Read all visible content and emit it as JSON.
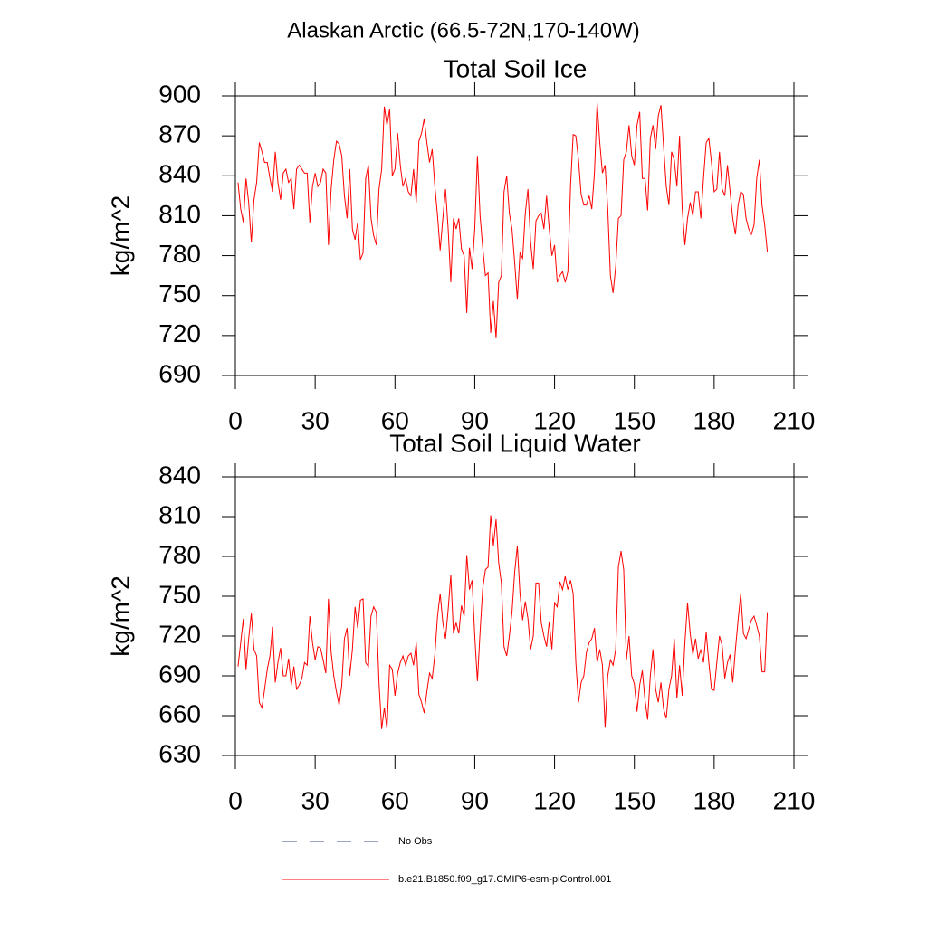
{
  "title": "Alaskan Arctic (66.5-72N,170-140W)",
  "legend": [
    {
      "name": "No Obs",
      "color": "#3a4a8a",
      "dash": true
    },
    {
      "name": "b.e21.B1850.f09_g17.CMIP6-esm-piControl.001",
      "color": "#ff0000",
      "dash": false
    }
  ],
  "chart_data": [
    {
      "type": "line",
      "title": "Total Soil Ice",
      "ylabel": "kg/m^2",
      "x": [
        1,
        2,
        3,
        4,
        5,
        6,
        7,
        8,
        9,
        10,
        11,
        12,
        13,
        14,
        15,
        16,
        17,
        18,
        19,
        20,
        21,
        22,
        23,
        24,
        25,
        26,
        27,
        28,
        29,
        30,
        31,
        32,
        33,
        34,
        35,
        36,
        37,
        38,
        39,
        40,
        41,
        42,
        43,
        44,
        45,
        46,
        47,
        48,
        49,
        50,
        51,
        52,
        53,
        54,
        55,
        56,
        57,
        58,
        59,
        60,
        61,
        62,
        63,
        64,
        65,
        66,
        67,
        68,
        69,
        70,
        71,
        72,
        73,
        74,
        75,
        76,
        77,
        78,
        79,
        80,
        81,
        82,
        83,
        84,
        85,
        86,
        87,
        88,
        89,
        90,
        91,
        92,
        93,
        94,
        95,
        96,
        97,
        98,
        99,
        100,
        101,
        102,
        103,
        104,
        105,
        106,
        107,
        108,
        109,
        110,
        111,
        112,
        113,
        114,
        115,
        116,
        117,
        118,
        119,
        120,
        121,
        122,
        123,
        124,
        125,
        126,
        127,
        128,
        129,
        130,
        131,
        132,
        133,
        134,
        135,
        136,
        137,
        138,
        139,
        140,
        141,
        142,
        143,
        144,
        145,
        146,
        147,
        148,
        149,
        150,
        151,
        152,
        153,
        154,
        155,
        156,
        157,
        158,
        159,
        160,
        161,
        162,
        163,
        164,
        165,
        166,
        167,
        168,
        169,
        170,
        171,
        172,
        173,
        174,
        175,
        176,
        177,
        178,
        179,
        180,
        181,
        182,
        183,
        184,
        185,
        186,
        187,
        188,
        189,
        190,
        191,
        192,
        193,
        194,
        195,
        196,
        197,
        198,
        199,
        200
      ],
      "series": [
        {
          "color": "#ff0000",
          "values": [
            835,
            815,
            805,
            838,
            820,
            790,
            822,
            835,
            865,
            858,
            850,
            850,
            838,
            828,
            858,
            835,
            822,
            842,
            845,
            835,
            838,
            815,
            845,
            848,
            845,
            842,
            842,
            805,
            832,
            842,
            832,
            835,
            845,
            842,
            788,
            830,
            852,
            866,
            864,
            855,
            825,
            808,
            845,
            800,
            792,
            805,
            777,
            782,
            838,
            848,
            808,
            795,
            788,
            830,
            845,
            892,
            878,
            890,
            840,
            845,
            872,
            848,
            832,
            838,
            828,
            825,
            845,
            820,
            866,
            872,
            883,
            865,
            850,
            860,
            832,
            810,
            784,
            808,
            830,
            800,
            760,
            808,
            800,
            808,
            785,
            780,
            737,
            786,
            770,
            800,
            855,
            810,
            786,
            765,
            767,
            722,
            746,
            718,
            760,
            765,
            828,
            840,
            812,
            800,
            775,
            747,
            782,
            778,
            812,
            830,
            790,
            770,
            806,
            810,
            812,
            800,
            825,
            800,
            780,
            788,
            760,
            765,
            768,
            760,
            768,
            832,
            871,
            870,
            852,
            826,
            818,
            818,
            825,
            815,
            842,
            895,
            865,
            842,
            848,
            815,
            765,
            752,
            772,
            808,
            810,
            852,
            858,
            878,
            855,
            848,
            878,
            888,
            838,
            838,
            814,
            868,
            878,
            860,
            885,
            893,
            862,
            832,
            818,
            858,
            852,
            832,
            870,
            815,
            788,
            808,
            820,
            810,
            828,
            828,
            808,
            838,
            865,
            868,
            850,
            828,
            830,
            858,
            830,
            825,
            848,
            828,
            808,
            796,
            818,
            828,
            826,
            808,
            800,
            796,
            803,
            838,
            852,
            818,
            803,
            783
          ]
        }
      ],
      "xlim": [
        0,
        210
      ],
      "xticks": [
        0,
        30,
        60,
        90,
        120,
        150,
        180,
        210
      ],
      "ylim": [
        690,
        900
      ],
      "yticks": [
        690,
        720,
        750,
        780,
        810,
        840,
        870,
        900
      ]
    },
    {
      "type": "line",
      "title": "Total Soil Liquid Water",
      "ylabel": "kg/m^2",
      "x": [
        1,
        2,
        3,
        4,
        5,
        6,
        7,
        8,
        9,
        10,
        11,
        12,
        13,
        14,
        15,
        16,
        17,
        18,
        19,
        20,
        21,
        22,
        23,
        24,
        25,
        26,
        27,
        28,
        29,
        30,
        31,
        32,
        33,
        34,
        35,
        36,
        37,
        38,
        39,
        40,
        41,
        42,
        43,
        44,
        45,
        46,
        47,
        48,
        49,
        50,
        51,
        52,
        53,
        54,
        55,
        56,
        57,
        58,
        59,
        60,
        61,
        62,
        63,
        64,
        65,
        66,
        67,
        68,
        69,
        70,
        71,
        72,
        73,
        74,
        75,
        76,
        77,
        78,
        79,
        80,
        81,
        82,
        83,
        84,
        85,
        86,
        87,
        88,
        89,
        90,
        91,
        92,
        93,
        94,
        95,
        96,
        97,
        98,
        99,
        100,
        101,
        102,
        103,
        104,
        105,
        106,
        107,
        108,
        109,
        110,
        111,
        112,
        113,
        114,
        115,
        116,
        117,
        118,
        119,
        120,
        121,
        122,
        123,
        124,
        125,
        126,
        127,
        128,
        129,
        130,
        131,
        132,
        133,
        134,
        135,
        136,
        137,
        138,
        139,
        140,
        141,
        142,
        143,
        144,
        145,
        146,
        147,
        148,
        149,
        150,
        151,
        152,
        153,
        154,
        155,
        156,
        157,
        158,
        159,
        160,
        161,
        162,
        163,
        164,
        165,
        166,
        167,
        168,
        169,
        170,
        171,
        172,
        173,
        174,
        175,
        176,
        177,
        178,
        179,
        180,
        181,
        182,
        183,
        184,
        185,
        186,
        187,
        188,
        189,
        190,
        191,
        192,
        193,
        194,
        195,
        196,
        197,
        198,
        199,
        200
      ],
      "series": [
        {
          "color": "#ff0000",
          "values": [
            697,
            715,
            733,
            695,
            718,
            737,
            710,
            705,
            670,
            666,
            680,
            695,
            705,
            727,
            685,
            700,
            711,
            690,
            690,
            703,
            683,
            697,
            680,
            683,
            688,
            700,
            698,
            735,
            715,
            702,
            712,
            711,
            702,
            692,
            748,
            708,
            690,
            678,
            668,
            683,
            718,
            726,
            690,
            710,
            742,
            726,
            747,
            748,
            700,
            697,
            735,
            742,
            738,
            685,
            650,
            666,
            650,
            698,
            695,
            675,
            692,
            700,
            705,
            698,
            705,
            707,
            698,
            715,
            676,
            670,
            662,
            678,
            692,
            688,
            706,
            735,
            752,
            730,
            718,
            740,
            766,
            722,
            730,
            722,
            743,
            735,
            781,
            755,
            762,
            720,
            686,
            723,
            756,
            770,
            772,
            811,
            788,
            808,
            775,
            760,
            712,
            705,
            720,
            738,
            768,
            788,
            752,
            732,
            746,
            733,
            710,
            720,
            760,
            760,
            730,
            720,
            712,
            731,
            710,
            745,
            742,
            761,
            755,
            765,
            755,
            762,
            752,
            700,
            670,
            685,
            690,
            708,
            715,
            718,
            726,
            700,
            710,
            698,
            651,
            690,
            702,
            698,
            710,
            772,
            784,
            770,
            702,
            720,
            690,
            684,
            663,
            683,
            694,
            672,
            657,
            690,
            710,
            680,
            670,
            685,
            665,
            658,
            680,
            690,
            718,
            673,
            698,
            675,
            715,
            745,
            722,
            706,
            718,
            703,
            710,
            700,
            723,
            700,
            680,
            679,
            700,
            720,
            713,
            688,
            700,
            706,
            685,
            710,
            732,
            752,
            722,
            718,
            725,
            732,
            735,
            728,
            720,
            693,
            693,
            738
          ]
        }
      ],
      "xlim": [
        0,
        210
      ],
      "xticks": [
        0,
        30,
        60,
        90,
        120,
        150,
        180,
        210
      ],
      "ylim": [
        630,
        840
      ],
      "yticks": [
        630,
        660,
        690,
        720,
        750,
        780,
        810,
        840
      ]
    }
  ]
}
